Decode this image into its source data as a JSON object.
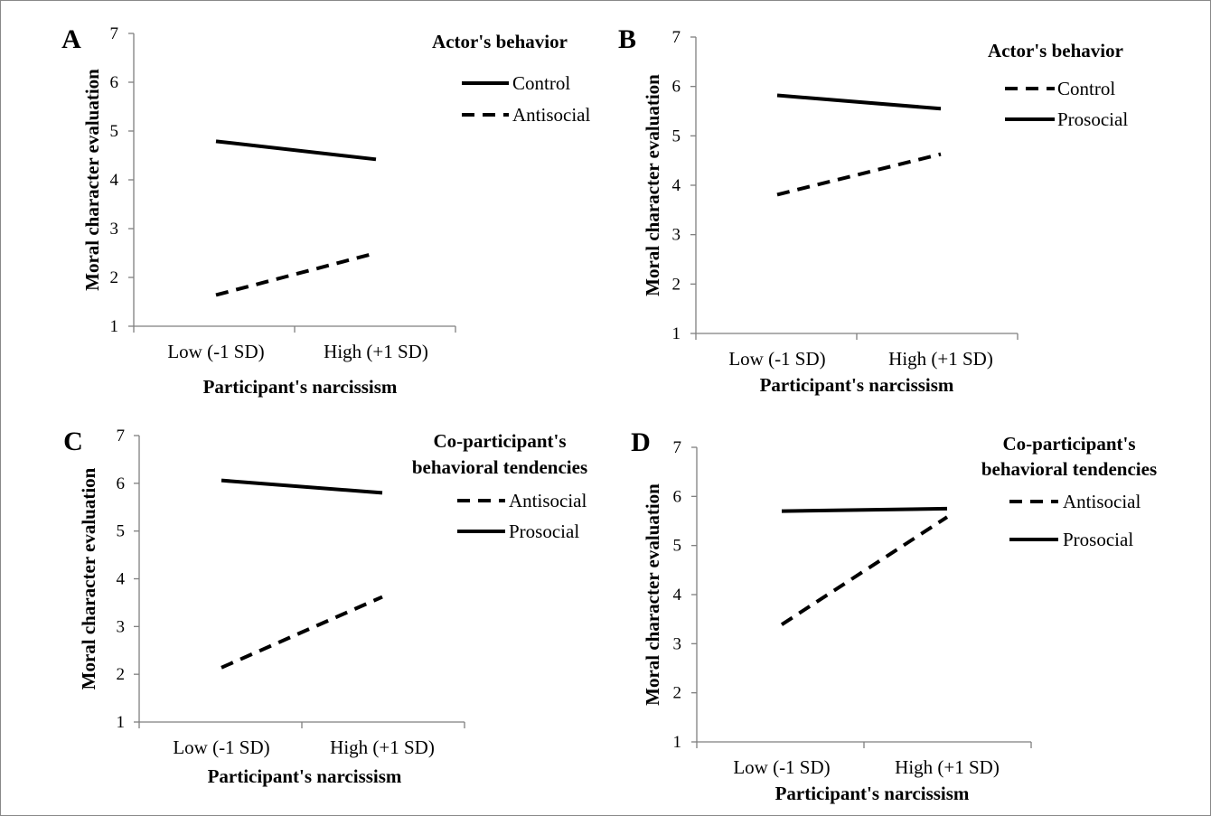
{
  "chart_data": [
    {
      "type": "line",
      "panel": "A",
      "categories": [
        "Low (-1 SD)",
        "High (+1 SD)"
      ],
      "xlabel": "Participant's narcissism",
      "ylabel": "Moral character evaluation",
      "ylim": [
        1,
        7
      ],
      "yticks": [
        "1",
        "2",
        "3",
        "4",
        "5",
        "6",
        "7"
      ],
      "legend_title": [
        "Actor's behavior"
      ],
      "legend_position": "top-right",
      "series": [
        {
          "name": "Control",
          "style": "solid",
          "values": [
            4.79,
            4.42
          ]
        },
        {
          "name": "Antisocial",
          "style": "dashed",
          "values": [
            1.64,
            2.5
          ]
        }
      ]
    },
    {
      "type": "line",
      "panel": "B",
      "categories": [
        "Low (-1 SD)",
        "High (+1 SD)"
      ],
      "xlabel": "Participant's narcissism",
      "ylabel": "Moral character evaluation",
      "ylim": [
        1,
        7
      ],
      "yticks": [
        "1",
        "2",
        "3",
        "4",
        "5",
        "6",
        "7"
      ],
      "legend_title": [
        "Actor's behavior"
      ],
      "legend_position": "top-right",
      "series": [
        {
          "name": "Control",
          "style": "dashed",
          "values": [
            3.81,
            4.63
          ]
        },
        {
          "name": "Prosocial",
          "style": "solid",
          "values": [
            5.82,
            5.55
          ]
        }
      ]
    },
    {
      "type": "line",
      "panel": "C",
      "categories": [
        "Low (-1 SD)",
        "High (+1 SD)"
      ],
      "xlabel": "Participant's narcissism",
      "ylabel": "Moral character evaluation",
      "ylim": [
        1,
        7
      ],
      "yticks": [
        "1",
        "2",
        "3",
        "4",
        "5",
        "6",
        "7"
      ],
      "legend_title": [
        "Co-participant's",
        "behavioral tendencies"
      ],
      "legend_position": "top-right",
      "series": [
        {
          "name": "Antisocial",
          "style": "dashed",
          "values": [
            2.14,
            3.62
          ]
        },
        {
          "name": "Prosocial",
          "style": "solid",
          "values": [
            6.06,
            5.8
          ]
        }
      ]
    },
    {
      "type": "line",
      "panel": "D",
      "categories": [
        "Low (-1 SD)",
        "High (+1 SD)"
      ],
      "xlabel": "Participant's narcissism",
      "ylabel": "Moral character evaluation",
      "ylim": [
        1,
        7
      ],
      "yticks": [
        "1",
        "2",
        "3",
        "4",
        "5",
        "6",
        "7"
      ],
      "legend_title": [
        "Co-participant's",
        "behavioral tendencies"
      ],
      "legend_position": "top-right",
      "series": [
        {
          "name": "Antisocial",
          "style": "dashed",
          "values": [
            3.39,
            5.58
          ]
        },
        {
          "name": "Prosocial",
          "style": "solid",
          "values": [
            5.7,
            5.75
          ]
        }
      ]
    }
  ],
  "colors": {
    "line": "#000000",
    "axis": "#7f7f7f",
    "background": "#ffffff"
  }
}
